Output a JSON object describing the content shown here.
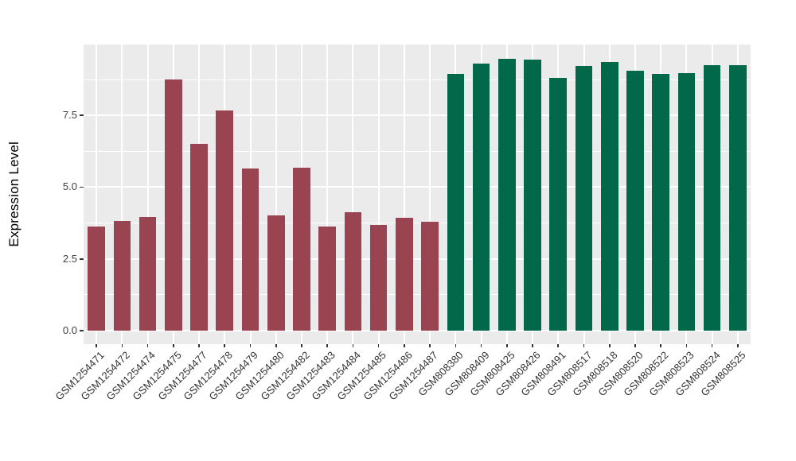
{
  "chart_data": {
    "type": "bar",
    "title": "",
    "xlabel": "",
    "ylabel": "Expression Level",
    "ylim": [
      0,
      9.97
    ],
    "ytick_values": [
      0,
      2.5,
      5,
      7.5
    ],
    "ytick_labels": [
      "0.0",
      "2.5",
      "5.0",
      "7.5"
    ],
    "ytick_minor_values": [
      1.25,
      3.75,
      6.25,
      8.75
    ],
    "grid": "white major and minor horizontal gridlines plus vertical gridline per category on gray panel",
    "legend_position": "none",
    "categories": [
      "GSM1254471",
      "GSM1254472",
      "GSM1254474",
      "GSM1254475",
      "GSM1254477",
      "GSM1254478",
      "GSM1254479",
      "GSM1254480",
      "GSM1254482",
      "GSM1254483",
      "GSM1254484",
      "GSM1254485",
      "GSM1254486",
      "GSM1254487",
      "GSM808380",
      "GSM808409",
      "GSM808425",
      "GSM808426",
      "GSM808491",
      "GSM808517",
      "GSM808518",
      "GSM808520",
      "GSM808522",
      "GSM808523",
      "GSM808524",
      "GSM808525"
    ],
    "values": [
      3.63,
      3.82,
      3.97,
      8.75,
      6.5,
      7.67,
      5.64,
      4.01,
      5.67,
      3.64,
      4.12,
      3.68,
      3.92,
      3.79,
      8.94,
      9.31,
      9.47,
      9.44,
      8.81,
      9.22,
      9.37,
      9.07,
      8.94,
      8.96,
      9.25,
      9.24
    ],
    "bar_colors": [
      "#9B4451",
      "#9B4451",
      "#9B4451",
      "#9B4451",
      "#9B4451",
      "#9B4451",
      "#9B4451",
      "#9B4451",
      "#9B4451",
      "#9B4451",
      "#9B4451",
      "#9B4451",
      "#9B4451",
      "#9B4451",
      "#02684A",
      "#02684A",
      "#02684A",
      "#02684A",
      "#02684A",
      "#02684A",
      "#02684A",
      "#02684A",
      "#02684A",
      "#02684A",
      "#02684A",
      "#02684A"
    ]
  },
  "colors": {
    "group1_red": "#9B4451",
    "group2_green": "#02684A",
    "panel_background": "#EBEBEB",
    "gridline": "#FFFFFF",
    "axis_text": "#404040",
    "axis_title": "#000000",
    "page_background": "#FFFFFF"
  }
}
